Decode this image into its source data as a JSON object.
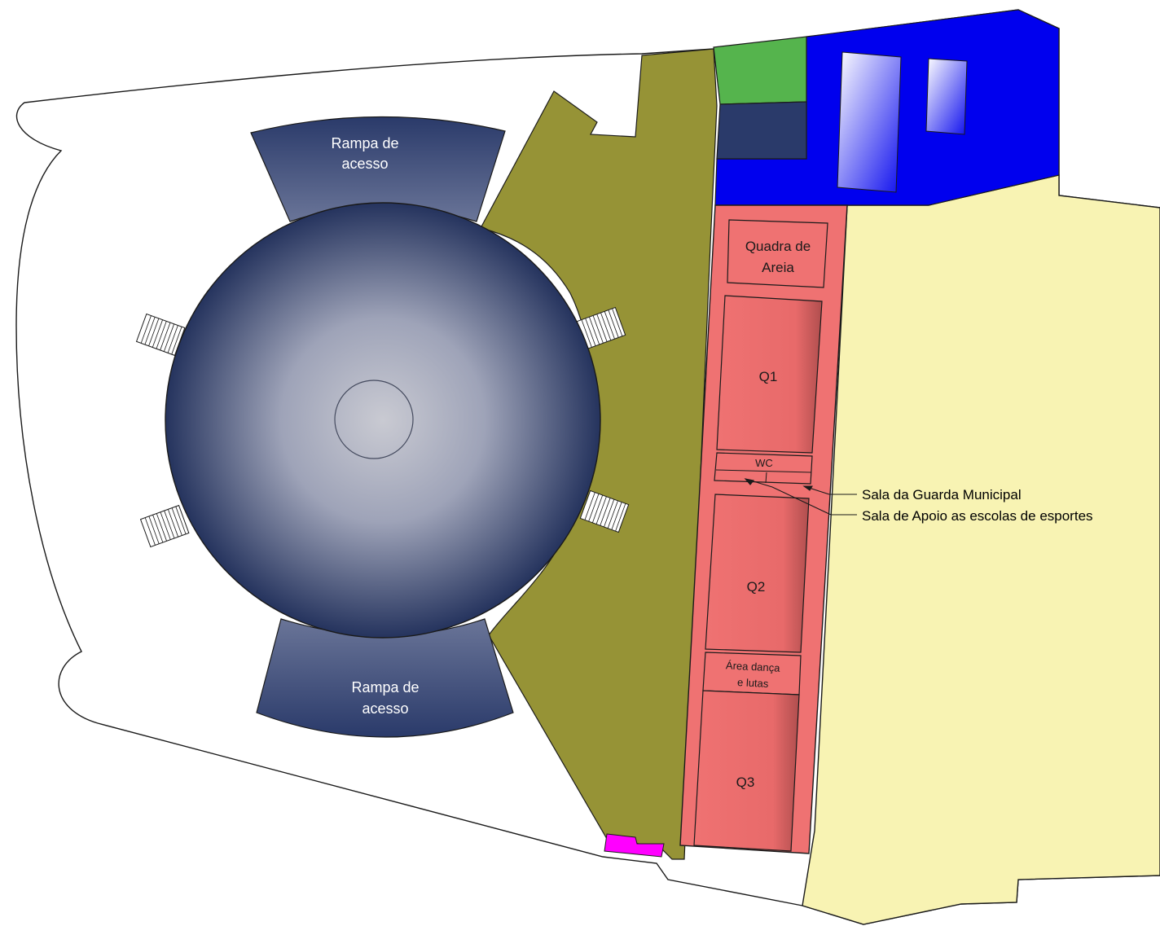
{
  "labels": {
    "ramp_top_line1": "Rampa de",
    "ramp_top_line2": "acesso",
    "ramp_bottom_line1": "Rampa de",
    "ramp_bottom_line2": "acesso",
    "sand_court_line1": "Quadra de",
    "sand_court_line2": "Areia",
    "court_q1": "Q1",
    "wc": "WC",
    "court_q2": "Q2",
    "dance_line1": "Área dança",
    "dance_line2": "e lutas",
    "court_q3": "Q3",
    "guard_room": "Sala da Guarda Municipal",
    "support_room": "Sala de Apoio as escolas de esportes"
  },
  "colors": {
    "outline": "#1a1a1a",
    "olive_area": "#969336",
    "blue_area": "#0000ee",
    "green_area": "#55b44d",
    "navy_block": "#2a3a6a",
    "pink_courts": "#ef7272",
    "cream_area": "#f8f3b3",
    "magenta_block": "#ff00ff",
    "dome_dark": "#1c2b57",
    "dome_light": "#c7c8d0"
  }
}
